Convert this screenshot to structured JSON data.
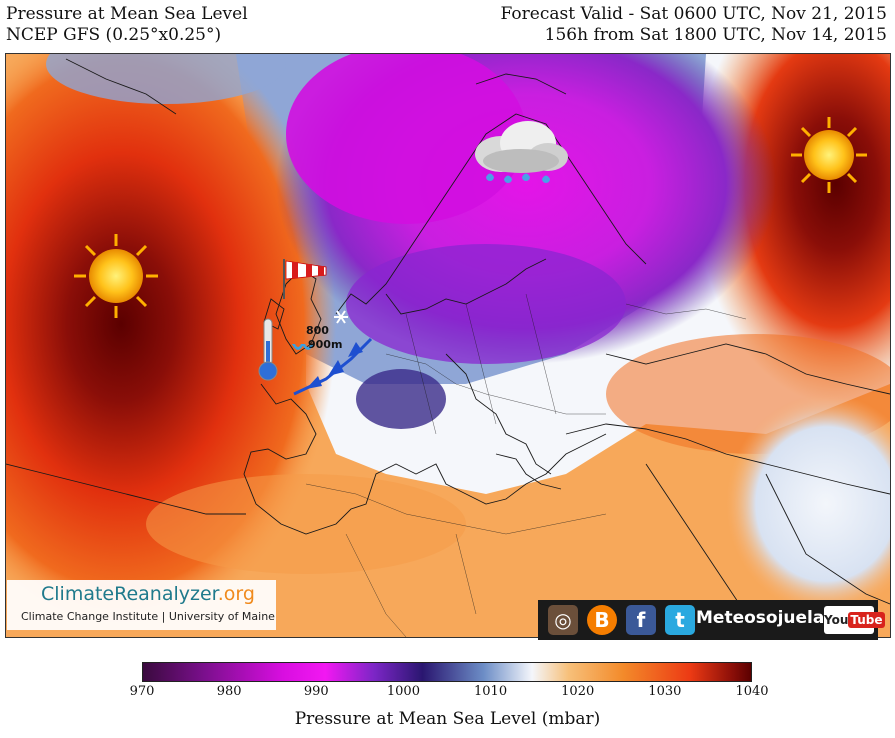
{
  "header": {
    "title": "Pressure at Mean Sea Level",
    "model": "NCEP GFS (0.25°x0.25°)",
    "valid": "Forecast Valid - Sat 0600 UTC, Nov 21, 2015",
    "lead": "156h from Sat 1800 UTC, Nov 14, 2015"
  },
  "map": {
    "annotations": {
      "level_800": "800",
      "level_900": "900m"
    },
    "icons": [
      "sun-icon",
      "sun-icon",
      "rain-cloud-icon",
      "windsock-icon",
      "thermometer-icon",
      "snowflake-icon",
      "cold-front-icon"
    ]
  },
  "credit": {
    "logo_main": "ClimateReanalyzer",
    "logo_org": ".org",
    "subtitle": "Climate Change Institute | University of Maine"
  },
  "social": {
    "name": "Meteosojuela",
    "youtube_you": "You",
    "youtube_tube": "Tube",
    "icons": [
      "instagram-icon",
      "blogger-icon",
      "facebook-icon",
      "twitter-icon"
    ]
  },
  "legend": {
    "ticks": [
      "970",
      "980",
      "990",
      "1000",
      "1010",
      "1020",
      "1030",
      "1040"
    ],
    "label": "Pressure at Mean Sea Level (mbar)",
    "range": [
      970,
      1040
    ]
  }
}
